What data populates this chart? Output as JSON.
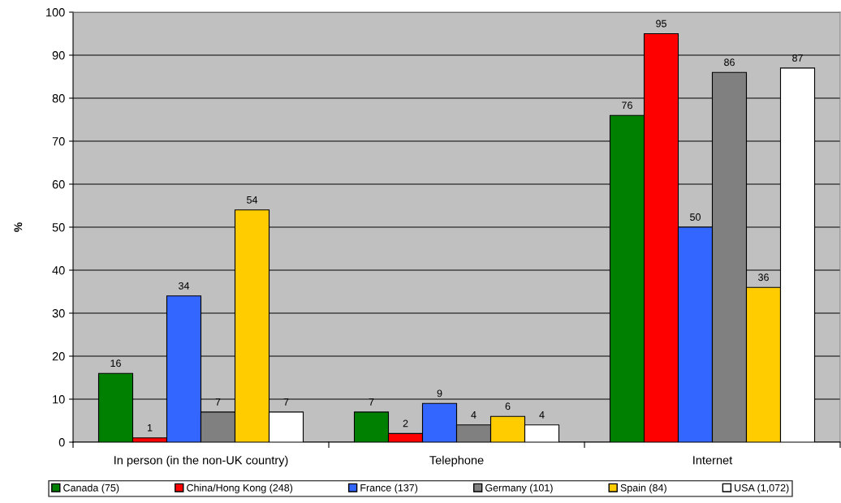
{
  "chart_data": {
    "type": "bar",
    "ylabel": "%",
    "categories": [
      "In person (in the non-UK country)",
      "Telephone",
      "Internet"
    ],
    "series": [
      {
        "name": "Canada (75)",
        "color": "#008000",
        "values": [
          16,
          7,
          76
        ]
      },
      {
        "name": "China/Hong Kong (248)",
        "color": "#ff0000",
        "values": [
          1,
          2,
          95
        ]
      },
      {
        "name": "France (137)",
        "color": "#3366ff",
        "values": [
          34,
          9,
          50
        ]
      },
      {
        "name": "Germany (101)",
        "color": "#808080",
        "values": [
          7,
          4,
          86
        ]
      },
      {
        "name": "Spain (84)",
        "color": "#ffcc00",
        "values": [
          54,
          6,
          36
        ]
      },
      {
        "name": "USA (1,072)",
        "color": "#ffffff",
        "values": [
          7,
          4,
          87
        ]
      }
    ],
    "ylim": [
      0,
      100
    ],
    "yticks": [
      0,
      10,
      20,
      30,
      40,
      50,
      60,
      70,
      80,
      90,
      100
    ],
    "grid": "y",
    "legend": "bottom",
    "data_labels": true
  }
}
